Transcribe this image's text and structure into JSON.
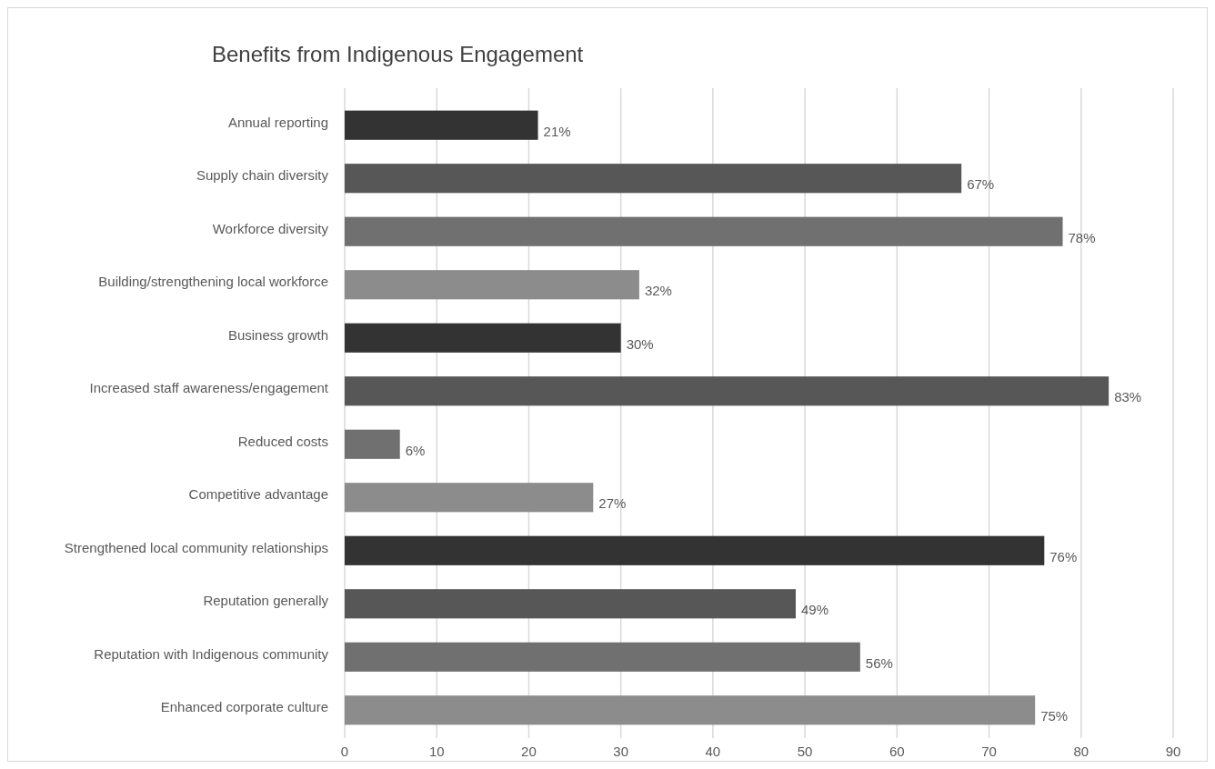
{
  "chart_data": {
    "type": "bar",
    "orientation": "horizontal",
    "title": "Benefits from Indigenous Engagement",
    "categories": [
      "Annual reporting",
      "Supply chain diversity",
      "Workforce diversity",
      "Building/strengthening local workforce",
      "Business growth",
      "Increased staff awareness/engagement",
      "Reduced costs",
      "Competitive advantage",
      "Strengthened local community relationships",
      "Reputation generally",
      "Reputation with Indigenous community",
      "Enhanced corporate culture"
    ],
    "values": [
      21,
      67,
      78,
      32,
      30,
      83,
      6,
      27,
      76,
      49,
      56,
      75
    ],
    "value_labels": [
      "21%",
      "67%",
      "78%",
      "32%",
      "30%",
      "83%",
      "6%",
      "27%",
      "76%",
      "49%",
      "56%",
      "75%"
    ],
    "colors": [
      "#333333",
      "#575757",
      "#707070",
      "#8c8c8c",
      "#333333",
      "#575757",
      "#707070",
      "#8c8c8c",
      "#333333",
      "#575757",
      "#707070",
      "#8c8c8c"
    ],
    "xlim": [
      0,
      90
    ],
    "xticks": [
      0,
      10,
      20,
      30,
      40,
      50,
      60,
      70,
      80,
      90
    ],
    "grid": "x"
  }
}
